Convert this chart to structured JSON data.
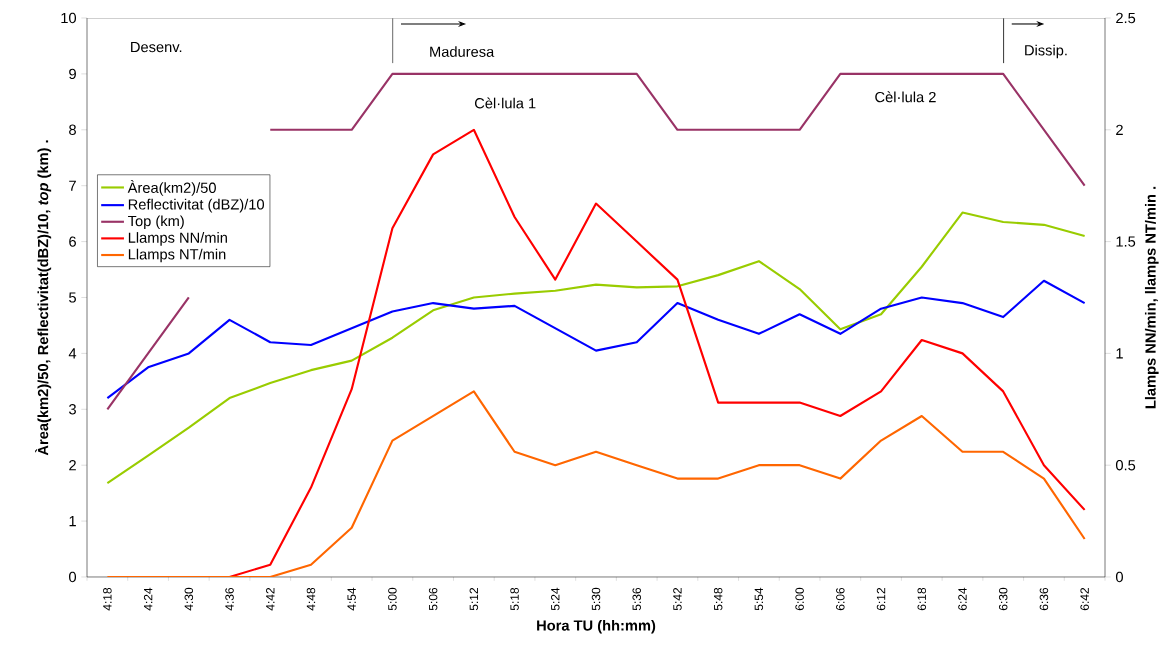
{
  "chart_data": {
    "type": "line",
    "xlabel": "Hora TU (hh:mm)",
    "ylabel": "Àrea(km2)/50, Reflectivitat(dBZ)/10, *top* (km) .",
    "y2label": "Llamps NN/min, llamps NT/min .",
    "categories": [
      "4:18",
      "4:24",
      "4:30",
      "4:36",
      "4:42",
      "4:48",
      "4:54",
      "5:00",
      "5:06",
      "5:12",
      "5:18",
      "5:24",
      "5:30",
      "5:36",
      "5:42",
      "5:48",
      "5:54",
      "6:00",
      "6:06",
      "6:12",
      "6:18",
      "6:24",
      "6:30",
      "6:36",
      "6:42"
    ],
    "series": [
      {
        "name": "Àrea(km2)/50",
        "color": "#99cc00",
        "values": [
          1.68,
          2.17,
          2.67,
          3.2,
          3.47,
          3.7,
          3.87,
          4.28,
          4.77,
          5.0,
          5.07,
          5.12,
          5.23,
          5.18,
          5.2,
          5.4,
          5.65,
          5.15,
          4.43,
          4.7,
          5.55,
          6.52,
          6.35,
          6.3,
          6.1
        ]
      },
      {
        "name": "Reflectivitat (dBZ)/10",
        "color": "#0000ff",
        "values": [
          3.2,
          3.75,
          4.0,
          4.6,
          4.2,
          4.15,
          4.45,
          4.75,
          4.9,
          4.8,
          4.85,
          4.45,
          4.05,
          4.2,
          4.9,
          4.6,
          4.35,
          4.7,
          4.35,
          4.8,
          5.0,
          4.9,
          4.65,
          5.3,
          4.9
        ]
      },
      {
        "name": "Top (km)",
        "color": "#993366",
        "values": [
          3,
          4,
          5,
          null,
          8,
          8,
          8,
          9,
          9,
          9,
          9,
          9,
          9,
          9,
          8,
          8,
          8,
          8,
          9,
          9,
          9,
          9,
          9,
          8,
          7
        ]
      },
      {
        "name": "Llamps NN/min",
        "color": "#ff0000",
        "axis": "y2",
        "values": [
          null,
          null,
          0,
          0,
          0.055,
          0.4,
          0.84,
          1.56,
          1.89,
          2.0,
          1.61,
          1.33,
          1.67,
          1.5,
          1.33,
          0.78,
          0.78,
          0.78,
          0.72,
          0.83,
          1.06,
          1.0,
          0.83,
          0.5,
          0.3
        ]
      },
      {
        "name": "Llamps NT/min",
        "color": "#ff6600",
        "axis": "y2",
        "values": [
          0,
          0,
          0,
          0,
          0,
          0.055,
          0.22,
          0.61,
          0.72,
          0.83,
          0.56,
          0.5,
          0.56,
          0.5,
          0.44,
          0.44,
          0.5,
          0.5,
          0.44,
          0.61,
          0.72,
          0.56,
          0.56,
          0.44,
          0.17
        ]
      }
    ],
    "ylim": [
      0,
      10
    ],
    "yticks": [
      0,
      1,
      2,
      3,
      4,
      5,
      6,
      7,
      8,
      9,
      10
    ],
    "y2lim": [
      0,
      2.5
    ],
    "y2ticks": [
      0,
      0.5,
      1,
      1.5,
      2,
      2.5
    ],
    "grid": false,
    "legend": "left",
    "marker": "none",
    "line_style": "solid",
    "annotations": [
      "Desenv.",
      "Maduresa",
      "Dissip.",
      "Cèl·lula 1",
      "Cèl·lula 2"
    ]
  }
}
